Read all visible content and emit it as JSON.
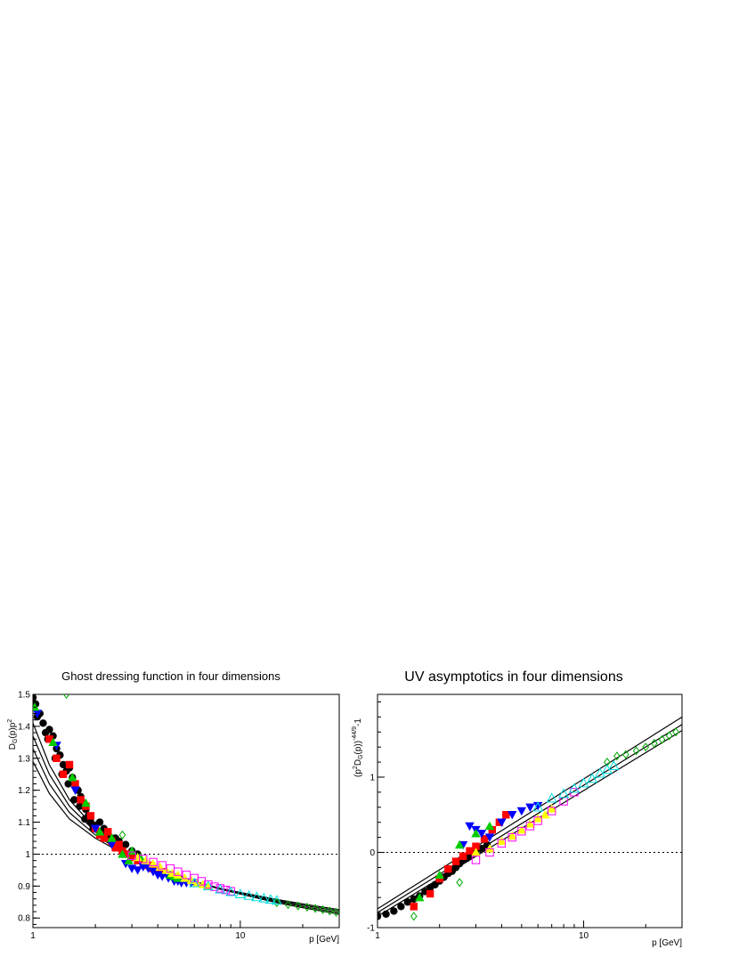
{
  "chart_data": [
    {
      "type": "scatter",
      "title": "Ghost dressing function in four dimensions",
      "xlabel": "p [GeV]",
      "ylabel": "D_G(p)p^2",
      "xscale": "log",
      "xlim": [
        1,
        30
      ],
      "ylim": [
        0.77,
        1.5
      ],
      "xticklabels": [
        "1",
        "10"
      ],
      "yticklabels": [
        "0.8",
        "0.9",
        "1",
        "1.1",
        "1.2",
        "1.3",
        "1.4",
        "1.5"
      ],
      "reference_line": {
        "y": 1.0,
        "style": "dotted"
      },
      "fit_curves": [
        {
          "name": "",
          "x": [
            1.0,
            1.2,
            1.5,
            2.0,
            2.5,
            3.0,
            4.0,
            5.0,
            6.0,
            8.0,
            10.0,
            15.0,
            20.0,
            30.0
          ],
          "y": [
            1.41,
            1.28,
            1.17,
            1.08,
            1.03,
            1.0,
            0.96,
            0.935,
            0.915,
            0.89,
            0.875,
            0.848,
            0.832,
            0.812
          ]
        },
        {
          "name": "",
          "x": [
            1.0,
            1.2,
            1.5,
            2.0,
            2.5,
            3.0,
            4.0,
            5.0,
            6.0,
            8.0,
            10.0,
            15.0,
            20.0,
            30.0
          ],
          "y": [
            1.37,
            1.25,
            1.15,
            1.07,
            1.025,
            0.997,
            0.958,
            0.933,
            0.915,
            0.891,
            0.877,
            0.852,
            0.836,
            0.817
          ]
        },
        {
          "name": "",
          "x": [
            1.0,
            1.2,
            1.5,
            2.0,
            2.5,
            3.0,
            4.0,
            5.0,
            6.0,
            8.0,
            10.0,
            15.0,
            20.0,
            30.0
          ],
          "y": [
            1.33,
            1.22,
            1.13,
            1.06,
            1.02,
            0.994,
            0.957,
            0.932,
            0.915,
            0.892,
            0.879,
            0.855,
            0.84,
            0.822
          ]
        },
        {
          "name": "",
          "x": [
            1.0,
            1.2,
            1.5,
            2.0,
            2.5,
            3.0,
            4.0,
            5.0,
            6.0,
            8.0,
            10.0,
            15.0,
            20.0,
            30.0
          ],
          "y": [
            1.29,
            1.19,
            1.11,
            1.05,
            1.015,
            0.99,
            0.955,
            0.931,
            0.915,
            0.893,
            0.88,
            0.858,
            0.844,
            0.826
          ]
        }
      ],
      "series": [
        {
          "marker": "circle",
          "color": "#000000",
          "x": [
            1.0,
            1.03,
            1.08,
            1.12,
            1.15,
            1.2,
            1.25,
            1.3,
            1.35,
            1.4,
            1.45,
            1.5,
            1.55,
            1.6,
            1.65,
            1.7,
            1.75,
            1.8,
            1.85,
            1.9,
            2.0,
            2.1,
            2.2,
            2.3,
            2.4,
            2.6,
            2.8,
            3.0,
            3.2,
            1.05,
            1.18,
            1.28,
            1.38,
            1.48,
            1.58,
            1.68,
            1.78,
            1.95,
            2.15,
            2.5
          ],
          "y": [
            1.49,
            1.47,
            1.44,
            1.41,
            1.38,
            1.39,
            1.37,
            1.33,
            1.31,
            1.28,
            1.26,
            1.27,
            1.24,
            1.21,
            1.2,
            1.18,
            1.16,
            1.14,
            1.12,
            1.1,
            1.09,
            1.1,
            1.08,
            1.06,
            1.05,
            1.04,
            1.03,
            1.01,
            1.0,
            1.43,
            1.36,
            1.3,
            1.25,
            1.22,
            1.17,
            1.15,
            1.11,
            1.08,
            1.07,
            1.05
          ]
        },
        {
          "marker": "square",
          "color": "#ff0000",
          "x": [
            1.2,
            1.3,
            1.4,
            1.5,
            1.6,
            1.7,
            1.8,
            1.9,
            2.0,
            2.1,
            2.2,
            2.3,
            2.4,
            2.5,
            2.6,
            2.7,
            2.8,
            3.0,
            3.2,
            3.4,
            3.6,
            3.8,
            4.0,
            4.2
          ],
          "y": [
            1.36,
            1.3,
            1.25,
            1.28,
            1.22,
            1.17,
            1.15,
            1.12,
            1.08,
            1.06,
            1.05,
            1.07,
            1.04,
            1.02,
            1.03,
            1.01,
            1.0,
            0.99,
            0.98,
            0.97,
            0.965,
            0.955,
            0.95,
            0.945
          ]
        },
        {
          "marker": "triangle-down",
          "color": "#0000ff",
          "x": [
            1.05,
            1.3,
            1.6,
            2.0,
            2.4,
            2.8,
            3.0,
            3.2,
            3.4,
            3.6,
            3.8,
            4.0,
            4.2,
            4.5,
            4.8,
            5.0,
            5.2,
            5.5,
            5.8,
            6.0
          ],
          "y": [
            1.44,
            1.34,
            1.2,
            1.08,
            1.03,
            0.97,
            0.955,
            0.95,
            0.96,
            0.955,
            0.945,
            0.935,
            0.93,
            0.925,
            0.915,
            0.915,
            0.91,
            0.91,
            0.91,
            0.91
          ]
        },
        {
          "marker": "triangle-up",
          "color": "#00cc00",
          "x": [
            1.02,
            1.25,
            1.55,
            1.8,
            2.1,
            2.4,
            2.7,
            2.9,
            3.0,
            3.3,
            4.6,
            4.8,
            5.0
          ],
          "y": [
            1.46,
            1.35,
            1.24,
            1.16,
            1.07,
            1.05,
            1.0,
            0.98,
            1.01,
            0.99,
            0.935,
            0.93,
            0.925
          ]
        },
        {
          "marker": "diamond-open",
          "color": "#00aa00",
          "x": [
            1.45,
            2.7,
            15.0,
            17.0,
            19.0,
            21.0,
            23.0,
            25.0,
            27.0,
            29.0
          ],
          "y": [
            1.5,
            1.06,
            0.848,
            0.842,
            0.838,
            0.834,
            0.83,
            0.826,
            0.822,
            0.818
          ]
        },
        {
          "marker": "triangle-up",
          "color": "#ffff00",
          "x": [
            3.2,
            3.5,
            3.8,
            4.1,
            4.4,
            4.7,
            5.0,
            5.4,
            5.8,
            6.2,
            6.6,
            7.0
          ],
          "y": [
            0.99,
            0.98,
            0.97,
            0.96,
            0.95,
            0.94,
            0.935,
            0.925,
            0.918,
            0.91,
            0.905,
            0.9
          ]
        },
        {
          "marker": "square-open",
          "color": "#ff00ff",
          "x": [
            3.0,
            3.4,
            3.8,
            4.2,
            4.6,
            5.0,
            5.5,
            6.0,
            6.5,
            7.0,
            7.5,
            8.0,
            8.5,
            9.0
          ],
          "y": [
            0.995,
            0.985,
            0.975,
            0.965,
            0.955,
            0.945,
            0.935,
            0.925,
            0.915,
            0.905,
            0.898,
            0.893,
            0.888,
            0.884
          ]
        },
        {
          "marker": "triangle-open",
          "color": "#00dddd",
          "x": [
            6.0,
            7.0,
            8.0,
            9.0,
            10.0,
            11.0,
            12.0,
            13.0,
            14.0,
            15.0
          ],
          "y": [
            0.91,
            0.9,
            0.89,
            0.882,
            0.875,
            0.87,
            0.866,
            0.862,
            0.858,
            0.855
          ]
        }
      ]
    },
    {
      "type": "scatter",
      "title": "UV asymptotics in four dimensions",
      "xlabel": "p [GeV]",
      "ylabel": "(p^2D_G(p))^{-44/9}-1",
      "xscale": "log",
      "xlim": [
        1,
        30
      ],
      "ylim": [
        -1,
        2.1
      ],
      "xticklabels": [
        "1",
        "10"
      ],
      "yticklabels": [
        "-1",
        "0",
        "1"
      ],
      "reference_line": {
        "y": 0,
        "style": "dotted"
      },
      "fit_curves": [
        {
          "name": "",
          "x": [
            1.0,
            30.0
          ],
          "y": [
            -0.75,
            1.8
          ]
        },
        {
          "name": "",
          "x": [
            1.0,
            30.0
          ],
          "y": [
            -0.8,
            1.7
          ]
        },
        {
          "name": "",
          "x": [
            1.0,
            30.0
          ],
          "y": [
            -0.85,
            1.62
          ]
        }
      ],
      "series": [
        {
          "marker": "circle",
          "color": "#000000",
          "x": [
            1.0,
            1.1,
            1.2,
            1.3,
            1.4,
            1.5,
            1.6,
            1.7,
            1.8,
            1.9,
            2.0,
            2.1,
            2.2,
            2.3,
            2.4,
            2.5,
            2.6,
            2.7,
            2.8,
            3.0,
            3.2,
            3.4
          ],
          "y": [
            -0.85,
            -0.82,
            -0.78,
            -0.72,
            -0.66,
            -0.62,
            -0.58,
            -0.52,
            -0.47,
            -0.43,
            -0.38,
            -0.33,
            -0.28,
            -0.25,
            -0.2,
            -0.15,
            -0.1,
            -0.08,
            -0.05,
            0.0,
            0.05,
            0.1
          ]
        },
        {
          "marker": "square",
          "color": "#ff0000",
          "x": [
            1.5,
            1.8,
            2.0,
            2.2,
            2.4,
            2.6,
            2.8,
            3.0,
            3.3,
            3.6,
            3.9,
            4.2
          ],
          "y": [
            -0.72,
            -0.55,
            -0.35,
            -0.22,
            -0.12,
            -0.05,
            0.02,
            0.08,
            0.18,
            0.3,
            0.4,
            0.5
          ]
        },
        {
          "marker": "triangle-down",
          "color": "#0000ff",
          "x": [
            2.6,
            2.8,
            3.0,
            3.2,
            3.5,
            4.0,
            4.5,
            5.0,
            5.5,
            6.0
          ],
          "y": [
            0.1,
            0.35,
            0.3,
            0.25,
            0.2,
            0.4,
            0.5,
            0.55,
            0.6,
            0.62
          ]
        },
        {
          "marker": "triangle-up",
          "color": "#00cc00",
          "x": [
            1.6,
            2.0,
            2.5,
            3.0,
            3.5
          ],
          "y": [
            -0.6,
            -0.3,
            0.1,
            0.25,
            0.35
          ]
        },
        {
          "marker": "diamond-open",
          "color": "#00aa00",
          "x": [
            1.5,
            2.5,
            13.0,
            14.5,
            16.0,
            18.0,
            20.0,
            22.0,
            24.0,
            26.0,
            28.0
          ],
          "y": [
            -0.85,
            -0.4,
            1.2,
            1.28,
            1.3,
            1.35,
            1.4,
            1.45,
            1.5,
            1.55,
            1.6
          ]
        },
        {
          "marker": "triangle-up",
          "color": "#ffff00",
          "x": [
            3.0,
            3.5,
            4.0,
            4.5,
            5.0,
            5.5,
            6.0,
            6.5,
            7.0
          ],
          "y": [
            0.0,
            0.05,
            0.15,
            0.22,
            0.3,
            0.38,
            0.45,
            0.5,
            0.58
          ]
        },
        {
          "marker": "square-open",
          "color": "#ff00ff",
          "x": [
            3.0,
            3.5,
            4.0,
            4.5,
            5.0,
            5.5,
            6.0,
            7.0,
            8.0,
            9.0
          ],
          "y": [
            -0.1,
            0.0,
            0.12,
            0.2,
            0.28,
            0.35,
            0.42,
            0.55,
            0.68,
            0.8
          ]
        },
        {
          "marker": "triangle-open",
          "color": "#00dddd",
          "x": [
            6.0,
            7.0,
            8.0,
            9.0,
            10.0,
            11.0,
            12.0,
            13.0,
            14.0
          ],
          "y": [
            0.6,
            0.72,
            0.78,
            0.85,
            0.92,
            0.98,
            1.05,
            1.1,
            1.15
          ]
        }
      ]
    }
  ]
}
